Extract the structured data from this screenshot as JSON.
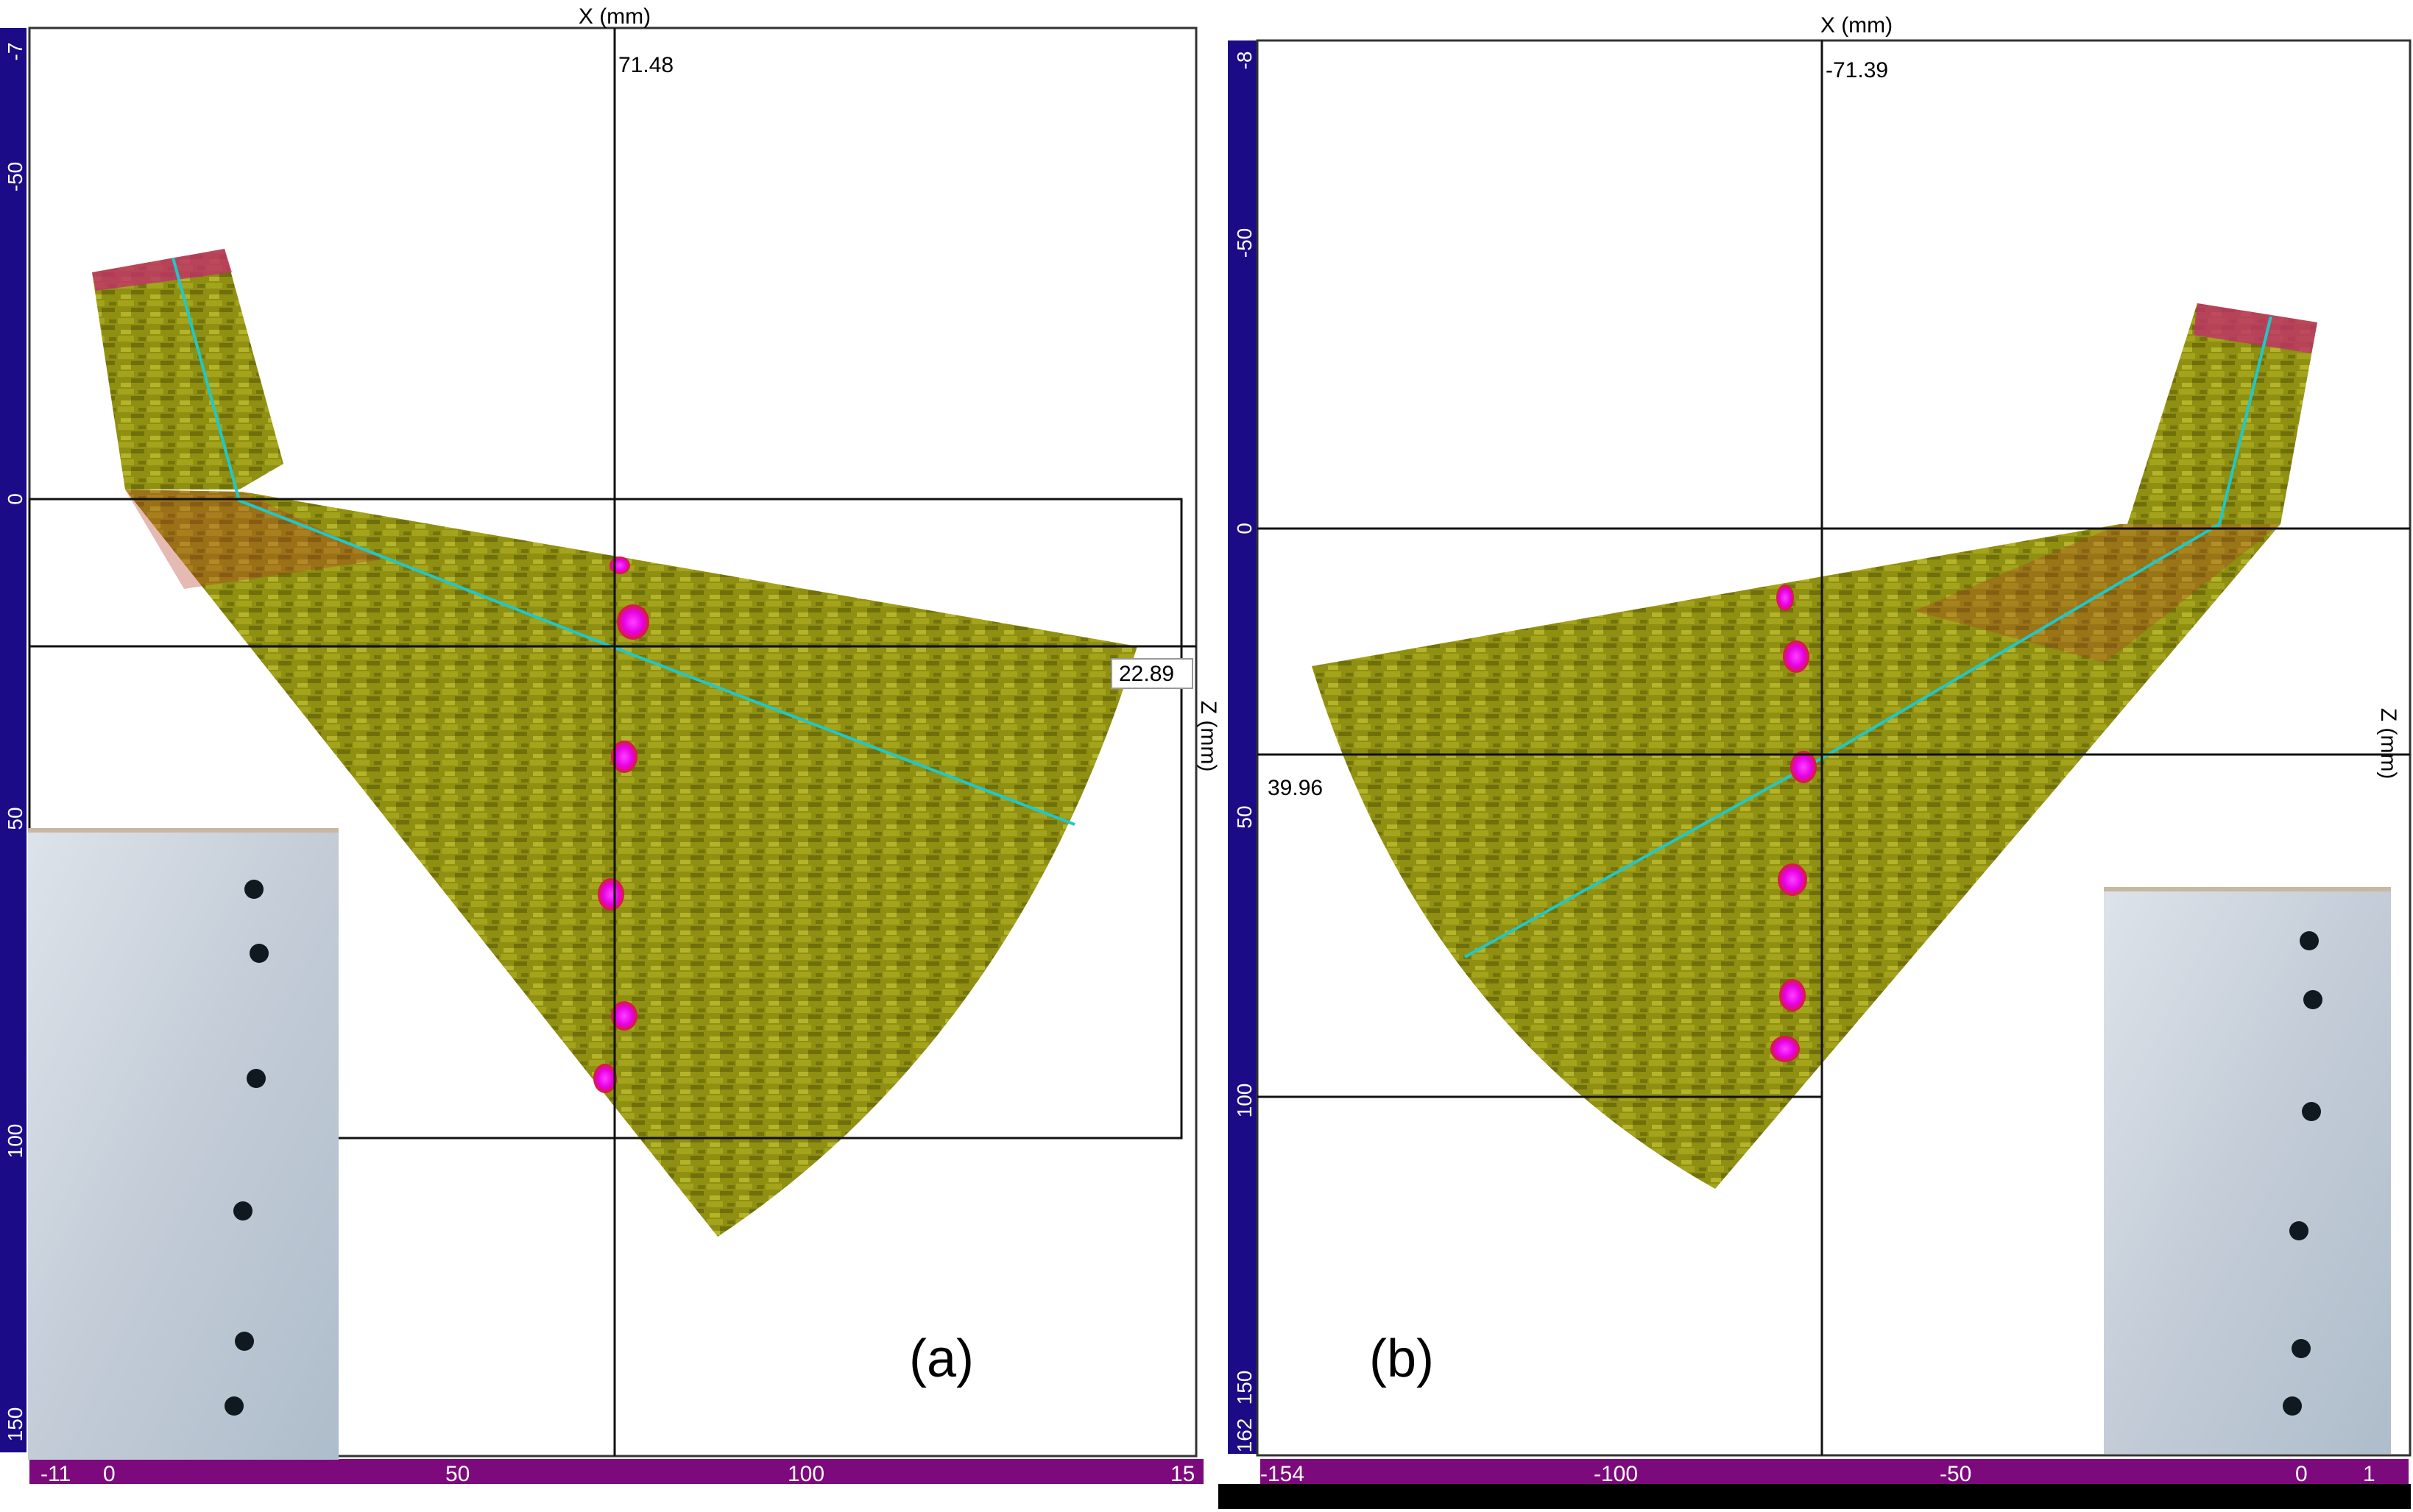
{
  "panels": [
    {
      "id": "a",
      "caption": "(a)",
      "x_axis_title": "X (mm)",
      "z_axis_title": "Z (mm)",
      "cursor_x_readout": "71.48",
      "cursor_z_readout": "22.89",
      "left_ruler_ticks": [
        "-7",
        "-50",
        "0",
        "50",
        "100",
        "150"
      ],
      "bottom_ruler_ticks": [
        "-11",
        "0",
        "50",
        "100",
        "15"
      ]
    },
    {
      "id": "b",
      "caption": "(b)",
      "x_axis_title": "X (mm)",
      "z_axis_title": "Z (mm)",
      "cursor_x_readout": "-71.39",
      "cursor_z_readout": "39.96",
      "left_ruler_ticks": [
        "-8",
        "-50",
        "0",
        "50",
        "100",
        "150",
        "162"
      ],
      "bottom_ruler_ticks": [
        "-154",
        "-100",
        "-50",
        "0",
        "1"
      ]
    }
  ],
  "colors": {
    "ruler": "#1c0b86",
    "ruler_bottom": "#7d0a7d",
    "ruler_bottom_b": "#000000",
    "scan": "#8c8c0a",
    "scan_light": "#c9c92a",
    "indication": "#e600e6",
    "beam_line": "#22c7c7",
    "photo": "#c9d2dc",
    "hole": "#101820"
  }
}
